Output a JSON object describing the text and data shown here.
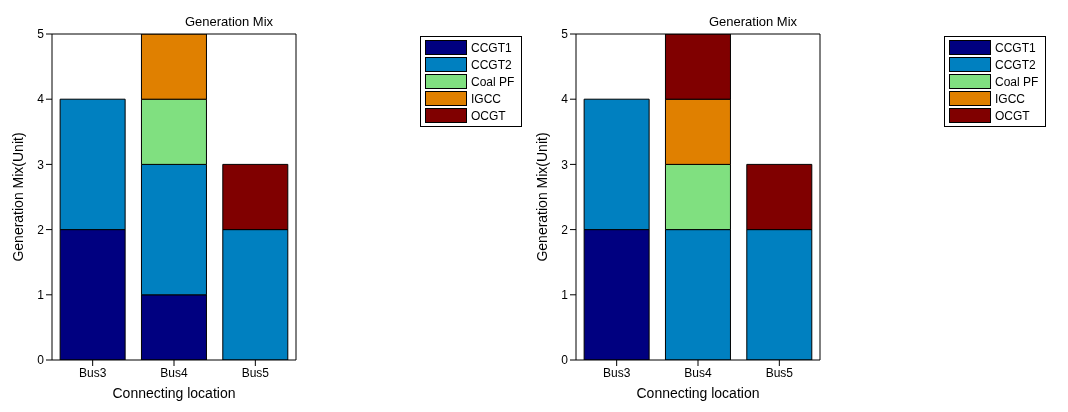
{
  "chart_data": [
    {
      "type": "bar",
      "title": "Generation Mix",
      "xlabel": "Connecting location",
      "ylabel": "Generation Mix(Unit)",
      "categories": [
        "Bus3",
        "Bus4",
        "Bus5"
      ],
      "stacked": true,
      "ylim": [
        0,
        5
      ],
      "yticks": [
        0,
        1,
        2,
        3,
        4,
        5
      ],
      "legend": "top right",
      "grid": false,
      "series": [
        {
          "name": "CCGT1",
          "color": "#000080",
          "values": [
            2,
            1,
            0
          ]
        },
        {
          "name": "CCGT2",
          "color": "#0080c0",
          "values": [
            2,
            2,
            2
          ]
        },
        {
          "name": "Coal PF",
          "color": "#80e080",
          "values": [
            0,
            1,
            0
          ]
        },
        {
          "name": "IGCC",
          "color": "#e08000",
          "values": [
            0,
            1,
            0
          ]
        },
        {
          "name": "OCGT",
          "color": "#800000",
          "values": [
            0,
            0,
            1
          ]
        }
      ]
    },
    {
      "type": "bar",
      "title": "Generation Mix",
      "xlabel": "Connecting location",
      "ylabel": "Generation Mix(Unit)",
      "categories": [
        "Bus3",
        "Bus4",
        "Bus5"
      ],
      "stacked": true,
      "ylim": [
        0,
        5
      ],
      "yticks": [
        0,
        1,
        2,
        3,
        4,
        5
      ],
      "legend": "top right",
      "grid": false,
      "series": [
        {
          "name": "CCGT1",
          "color": "#000080",
          "values": [
            2,
            0,
            0
          ]
        },
        {
          "name": "CCGT2",
          "color": "#0080c0",
          "values": [
            2,
            2,
            2
          ]
        },
        {
          "name": "Coal PF",
          "color": "#80e080",
          "values": [
            0,
            1,
            0
          ]
        },
        {
          "name": "IGCC",
          "color": "#e08000",
          "values": [
            0,
            1,
            0
          ]
        },
        {
          "name": "OCGT",
          "color": "#800000",
          "values": [
            0,
            1,
            1
          ]
        }
      ]
    }
  ]
}
